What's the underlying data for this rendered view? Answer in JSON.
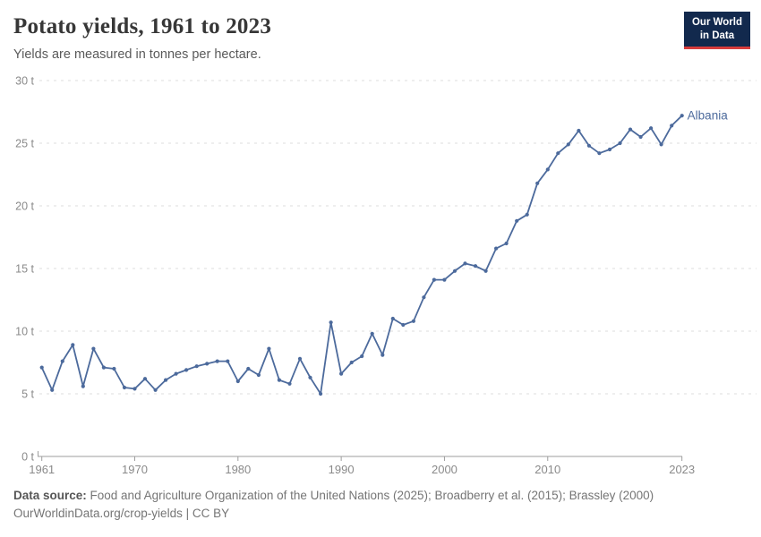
{
  "header": {
    "title": "Potato yields, 1961 to 2023",
    "subtitle": "Yields are measured in tonnes per hectare.",
    "logo": {
      "line1": "Our World",
      "line2": "in Data"
    }
  },
  "chart_data": {
    "type": "line",
    "title": "Potato yields, 1961 to 2023",
    "unit": "tonnes per hectare",
    "ylim": [
      0,
      30
    ],
    "yticks": [
      0,
      5,
      10,
      15,
      20,
      25,
      30
    ],
    "ytick_suffix": " t",
    "xticks": [
      1961,
      1970,
      1980,
      1990,
      2000,
      2010,
      2023
    ],
    "xlim": [
      1961,
      2023
    ],
    "grid": "horizontal-dashed",
    "legend_position": "end-of-line",
    "series": [
      {
        "name": "Albania",
        "color": "#4C6A9C",
        "x": [
          1961,
          1962,
          1963,
          1964,
          1965,
          1966,
          1967,
          1968,
          1969,
          1970,
          1971,
          1972,
          1973,
          1974,
          1975,
          1976,
          1977,
          1978,
          1979,
          1980,
          1981,
          1982,
          1983,
          1984,
          1985,
          1986,
          1987,
          1988,
          1989,
          1990,
          1991,
          1992,
          1993,
          1994,
          1995,
          1996,
          1997,
          1998,
          1999,
          2000,
          2001,
          2002,
          2003,
          2004,
          2005,
          2006,
          2007,
          2008,
          2009,
          2010,
          2011,
          2012,
          2013,
          2014,
          2015,
          2016,
          2017,
          2018,
          2019,
          2020,
          2021,
          2022,
          2023
        ],
        "values": [
          7.1,
          5.3,
          7.6,
          8.9,
          5.6,
          8.6,
          7.1,
          7.0,
          5.5,
          5.4,
          6.2,
          5.3,
          6.1,
          6.6,
          6.9,
          7.2,
          7.4,
          7.6,
          7.6,
          6.0,
          7.0,
          6.5,
          8.6,
          6.1,
          5.8,
          7.8,
          6.3,
          5.0,
          10.7,
          6.6,
          7.5,
          8.0,
          9.8,
          8.1,
          11.0,
          10.5,
          10.8,
          12.7,
          14.1,
          14.1,
          14.8,
          15.4,
          15.2,
          14.8,
          16.6,
          17.0,
          18.8,
          19.3,
          21.8,
          22.9,
          24.2,
          24.9,
          26.0,
          24.8,
          24.2,
          24.5,
          25.0,
          26.1,
          25.5,
          26.2,
          24.9,
          26.4,
          27.2
        ]
      }
    ]
  },
  "footer": {
    "datasource_label": "Data source:",
    "datasource_text": " Food and Agriculture Organization of the United Nations (2025); Broadberry et al. (2015); Brassley (2000)",
    "url": "OurWorldinData.org/crop-yields",
    "license": " | CC BY"
  },
  "colors": {
    "accent": "#4C6A9C",
    "logo_background": "#12294d",
    "logo_stripe": "#d73c3c",
    "gridline": "#dcdcdc",
    "axis": "#9e9e9e",
    "tick_text": "#8a8a8a"
  }
}
